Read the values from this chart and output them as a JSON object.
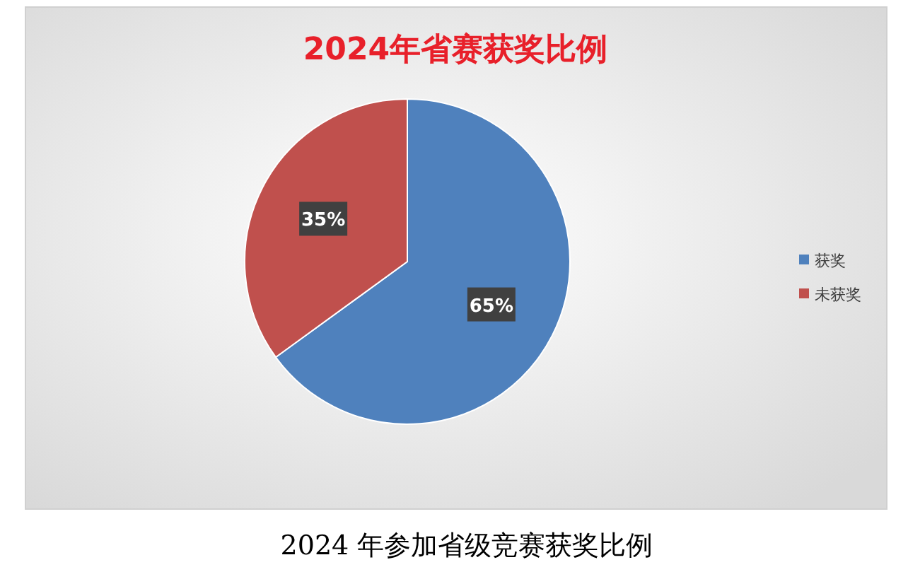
{
  "chart_data": {
    "type": "pie",
    "title": "2024年省赛获奖比例",
    "categories": [
      "获奖",
      "未获奖"
    ],
    "values": [
      65,
      35
    ],
    "colors": [
      "#4f81bd",
      "#c0504d"
    ],
    "value_labels": [
      "65%",
      "35%"
    ],
    "legend": "right",
    "annotations": [
      "2024 年参加省级竞赛获奖比例"
    ]
  }
}
